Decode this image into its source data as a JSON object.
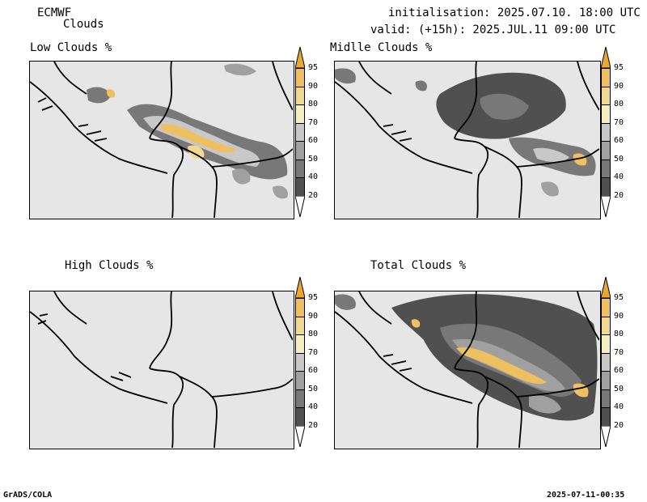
{
  "header": {
    "model": "ECMWF",
    "field": "Clouds",
    "init": "initialisation: 2025.07.10. 18:00 UTC",
    "valid": "valid: (+15h): 2025.JUL.11 09:00 UTC"
  },
  "panels": [
    {
      "title": "Low Clouds %"
    },
    {
      "title": "Midlle Clouds %"
    },
    {
      "title": "High Clouds %"
    },
    {
      "title": "Total Clouds %"
    }
  ],
  "colorbar": {
    "levels": [
      "20",
      "40",
      "50",
      "60",
      "70",
      "80",
      "90",
      "95"
    ],
    "colors": [
      "#ffffff",
      "#505050",
      "#787878",
      "#a0a0a0",
      "#c8c8c8",
      "#f5f0c0",
      "#f0d890",
      "#eec060",
      "#e8a830"
    ]
  },
  "footer": {
    "left": "GrADS/COLA",
    "right": "2025-07-11-00:35"
  }
}
